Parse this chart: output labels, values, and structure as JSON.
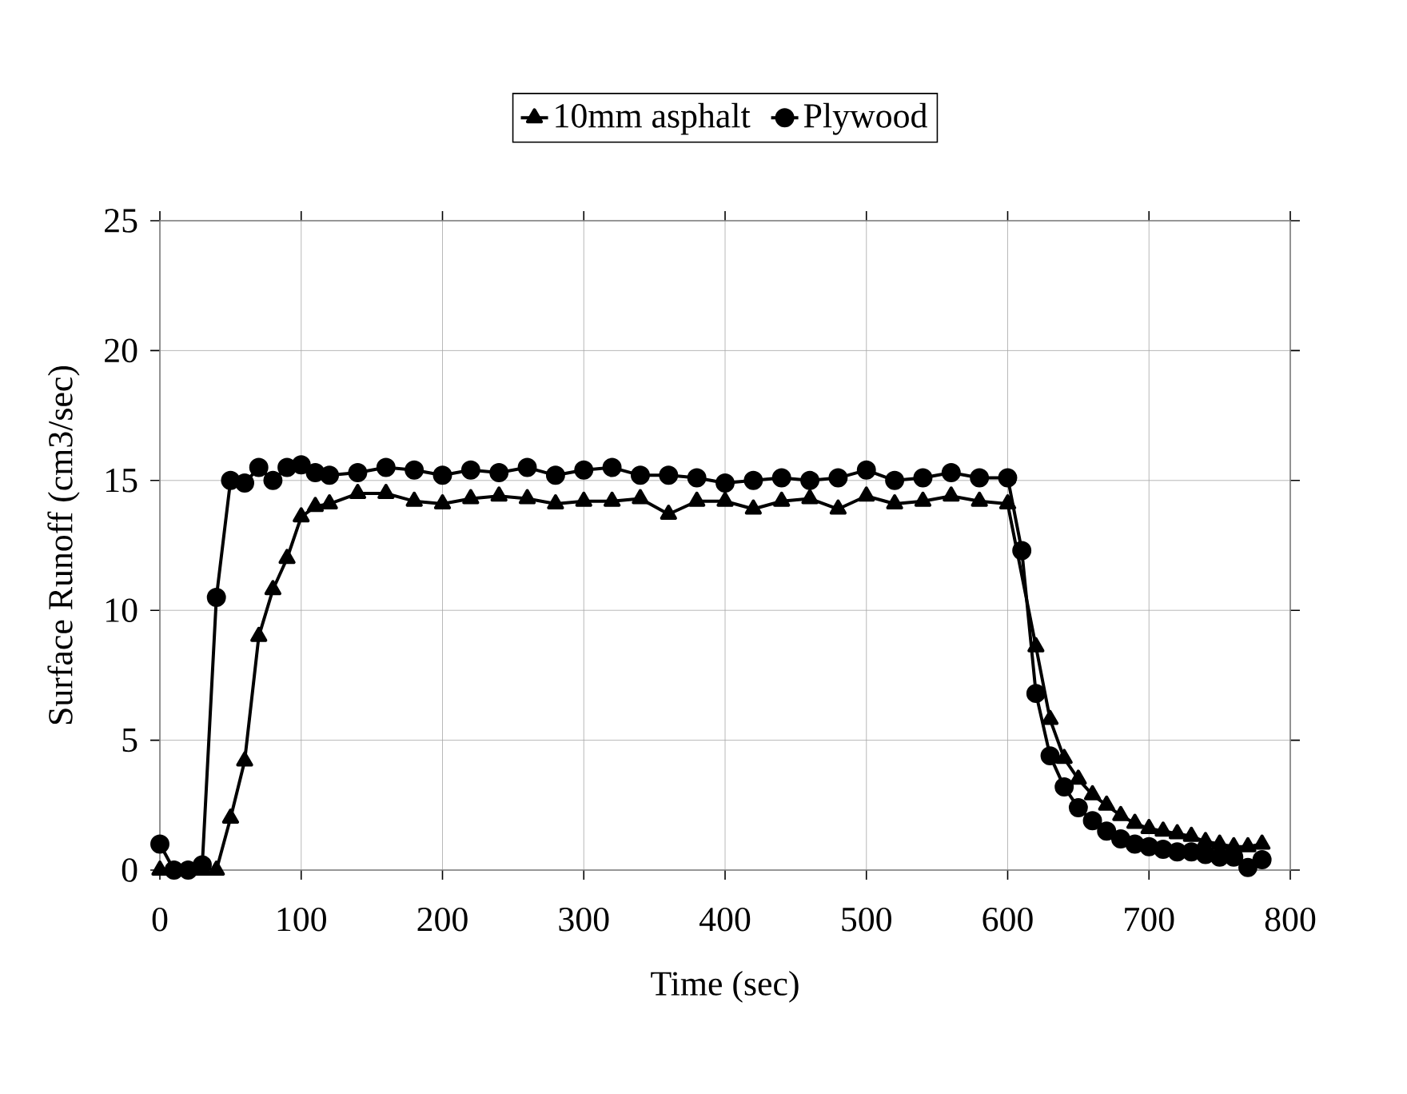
{
  "chart_data": {
    "type": "line",
    "xlabel": "Time (sec)",
    "ylabel": "Surface Runoff (cm3/sec)",
    "xlim": [
      0,
      800
    ],
    "ylim": [
      0,
      25
    ],
    "xticks": [
      0,
      100,
      200,
      300,
      400,
      500,
      600,
      700,
      800
    ],
    "yticks": [
      0,
      5,
      10,
      15,
      20,
      25
    ],
    "grid": true,
    "legend": "top",
    "series": [
      {
        "name": "10mm asphalt",
        "color": "#000000",
        "marker": "triangle",
        "x": [
          0,
          10,
          20,
          30,
          40,
          50,
          60,
          70,
          80,
          90,
          100,
          110,
          120,
          140,
          160,
          180,
          200,
          220,
          240,
          260,
          280,
          300,
          320,
          340,
          360,
          380,
          400,
          420,
          440,
          460,
          480,
          500,
          520,
          540,
          560,
          580,
          600,
          610,
          620,
          630,
          640,
          650,
          660,
          670,
          680,
          690,
          700,
          710,
          720,
          730,
          740,
          750,
          760,
          770,
          780
        ],
        "values": [
          0,
          0,
          0,
          0,
          0,
          2,
          4.2,
          9,
          10.8,
          12,
          13.6,
          14,
          14.1,
          14.5,
          14.5,
          14.2,
          14.1,
          14.3,
          14.4,
          14.3,
          14.1,
          14.2,
          14.2,
          14.3,
          13.7,
          14.2,
          14.2,
          13.9,
          14.2,
          14.3,
          13.9,
          14.4,
          14.1,
          14.2,
          14.4,
          14.2,
          14.1,
          null,
          8.6,
          5.8,
          4.3,
          3.5,
          2.9,
          2.5,
          2.1,
          1.8,
          1.6,
          1.5,
          1.4,
          1.3,
          1.1,
          1.0,
          0.9,
          0.9,
          1.0
        ]
      },
      {
        "name": "Plywood",
        "color": "#000000",
        "marker": "circle",
        "x": [
          0,
          10,
          20,
          30,
          40,
          50,
          60,
          70,
          80,
          90,
          100,
          110,
          120,
          140,
          160,
          180,
          200,
          220,
          240,
          260,
          280,
          300,
          320,
          340,
          360,
          380,
          400,
          420,
          440,
          460,
          480,
          500,
          520,
          540,
          560,
          580,
          600,
          610,
          620,
          630,
          640,
          650,
          660,
          670,
          680,
          690,
          700,
          710,
          720,
          730,
          740,
          750,
          760,
          770,
          780
        ],
        "values": [
          1.0,
          0,
          0,
          0.2,
          10.5,
          15,
          14.9,
          15.5,
          15,
          15.5,
          15.6,
          15.3,
          15.2,
          15.3,
          15.5,
          15.4,
          15.2,
          15.4,
          15.3,
          15.5,
          15.2,
          15.4,
          15.5,
          15.2,
          15.2,
          15.1,
          14.9,
          15,
          15.1,
          15,
          15.1,
          15.4,
          15,
          15.1,
          15.3,
          15.1,
          15.1,
          12.3,
          6.8,
          4.4,
          3.2,
          2.4,
          1.9,
          1.5,
          1.2,
          1.0,
          0.9,
          0.8,
          0.7,
          0.7,
          0.6,
          0.5,
          0.5,
          0.1,
          0.4
        ]
      }
    ]
  }
}
